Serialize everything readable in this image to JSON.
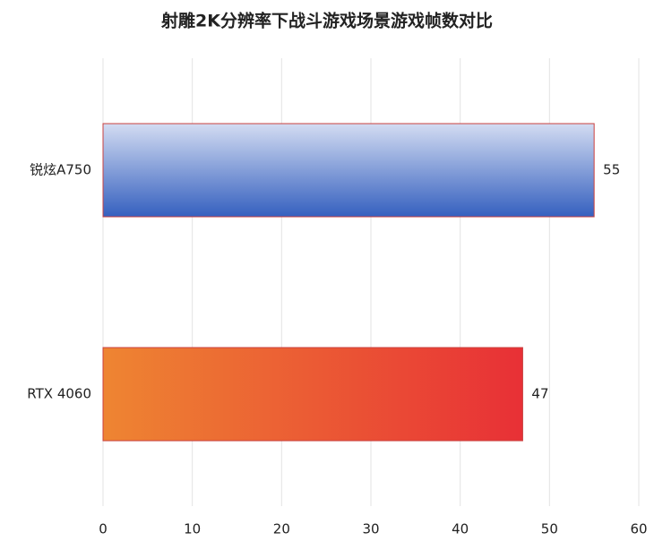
{
  "chart_data": {
    "type": "hbar",
    "title": "射雕2K分辨率下战斗游戏场景游戏帧数对比",
    "categories": [
      "锐炫A750",
      "RTX 4060"
    ],
    "values": [
      55,
      47
    ],
    "colors": [
      {
        "from": "#d3dcf2",
        "to": "#3560bf",
        "direction": "vertical"
      },
      {
        "from": "#ee8532",
        "to": "#e83036",
        "direction": "horizontal"
      }
    ],
    "xlim": [
      0,
      60
    ],
    "xticks": [
      0,
      10,
      20,
      30,
      40,
      50,
      60
    ],
    "grid": true
  }
}
